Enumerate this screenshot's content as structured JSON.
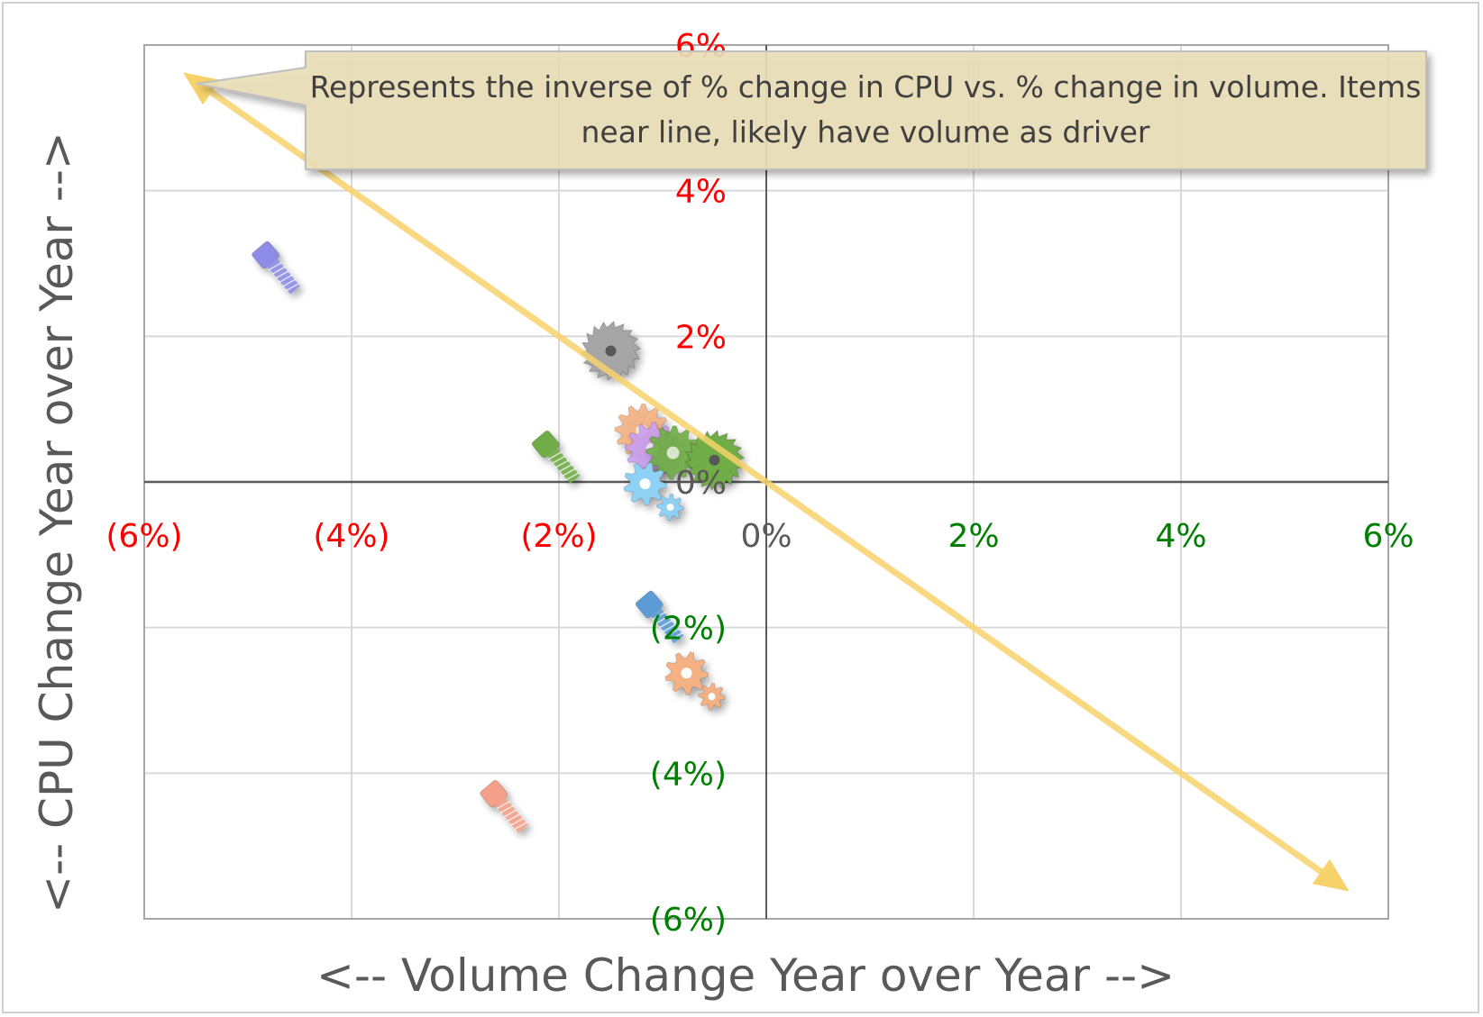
{
  "chart_data": {
    "type": "scatter",
    "xlabel": "<-- Volume Change Year over Year -->",
    "ylabel": "<-- CPU Change Year over Year  -->",
    "xlim": [
      -6,
      6
    ],
    "ylim": [
      -6,
      6
    ],
    "grid": true,
    "x_ticks": [
      {
        "value": -6,
        "label": "(6%)",
        "color": "#ff0000"
      },
      {
        "value": -4,
        "label": "(4%)",
        "color": "#ff0000"
      },
      {
        "value": -2,
        "label": "(2%)",
        "color": "#ff0000"
      },
      {
        "value": 0,
        "label": "0%",
        "color": "#595959"
      },
      {
        "value": 2,
        "label": "2%",
        "color": "#008000"
      },
      {
        "value": 4,
        "label": "4%",
        "color": "#008000"
      },
      {
        "value": 6,
        "label": "6%",
        "color": "#008000"
      }
    ],
    "y_ticks": [
      {
        "value": 6,
        "label": "6%",
        "color": "#ff0000"
      },
      {
        "value": 4,
        "label": "4%",
        "color": "#ff0000"
      },
      {
        "value": 2,
        "label": "2%",
        "color": "#ff0000"
      },
      {
        "value": 0,
        "label": "0%",
        "color": "#595959"
      },
      {
        "value": -2,
        "label": "(2%)",
        "color": "#008000"
      },
      {
        "value": -4,
        "label": "(4%)",
        "color": "#008000"
      },
      {
        "value": -6,
        "label": "(6%)",
        "color": "#008000"
      }
    ],
    "points": [
      {
        "x": -4.7,
        "y": 2.9,
        "marker": "bolt-icon",
        "color": "#8c8ce6"
      },
      {
        "x": -1.5,
        "y": 1.8,
        "marker": "saw-blade-icon",
        "color": "#a6a6a6"
      },
      {
        "x": -2.0,
        "y": 0.3,
        "marker": "bolt-icon",
        "color": "#70ad47"
      },
      {
        "x": -1.2,
        "y": 0.7,
        "marker": "gear-icon",
        "color": "#f4b183"
      },
      {
        "x": -1.1,
        "y": 0.45,
        "marker": "gear-icon",
        "color": "#c9a0f0"
      },
      {
        "x": -0.9,
        "y": 0.4,
        "marker": "gear-icon",
        "color": "#70ad47"
      },
      {
        "x": -0.5,
        "y": 0.3,
        "marker": "saw-blade-icon",
        "color": "#70ad47"
      },
      {
        "x": -1.1,
        "y": -0.1,
        "marker": "gears-icon",
        "color": "#8fd0f5"
      },
      {
        "x": -1.0,
        "y": -1.9,
        "marker": "bolt-icon",
        "color": "#5b9bd5"
      },
      {
        "x": -0.7,
        "y": -2.7,
        "marker": "gears-icon",
        "color": "#f4b183"
      },
      {
        "x": -2.5,
        "y": -4.5,
        "marker": "bolt-icon",
        "color": "#f4a08a"
      }
    ],
    "reference_line": {
      "from": [
        -5.5,
        5.5
      ],
      "to": [
        5.5,
        -5.5
      ],
      "color": "#f7d26b"
    },
    "annotation": "Represents the inverse of % change in CPU vs. % change in volume. Items near line, likely have volume as driver"
  }
}
